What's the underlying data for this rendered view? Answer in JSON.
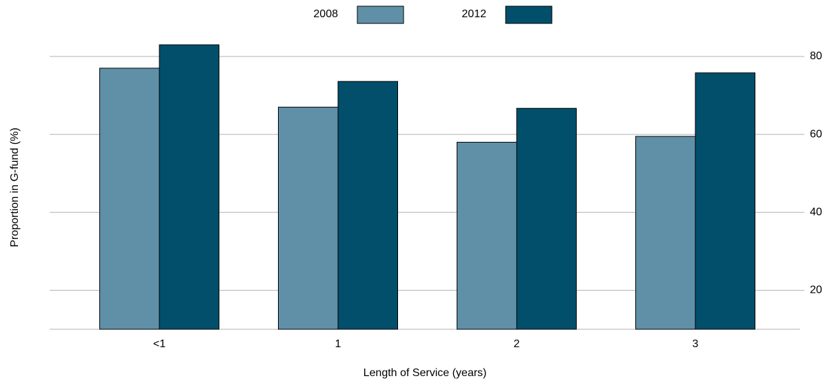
{
  "chart_data": {
    "type": "bar",
    "x_label": "Length of Service (years)",
    "y_label": "Proportion in G-fund (%)",
    "categories": [
      "<1",
      "1",
      "2",
      "3"
    ],
    "series": [
      {
        "name": "2008",
        "color": "#5f90a8",
        "values": [
          77,
          67,
          58,
          59.5
        ]
      },
      {
        "name": "2012",
        "color": "#014f6b",
        "values": [
          83,
          73.6,
          66.7,
          75.8
        ]
      }
    ],
    "ylim": [
      10,
      85
    ],
    "yticks": [
      20,
      40,
      60,
      80
    ],
    "grid": true,
    "y_axis_side": "right",
    "legend": "top"
  }
}
